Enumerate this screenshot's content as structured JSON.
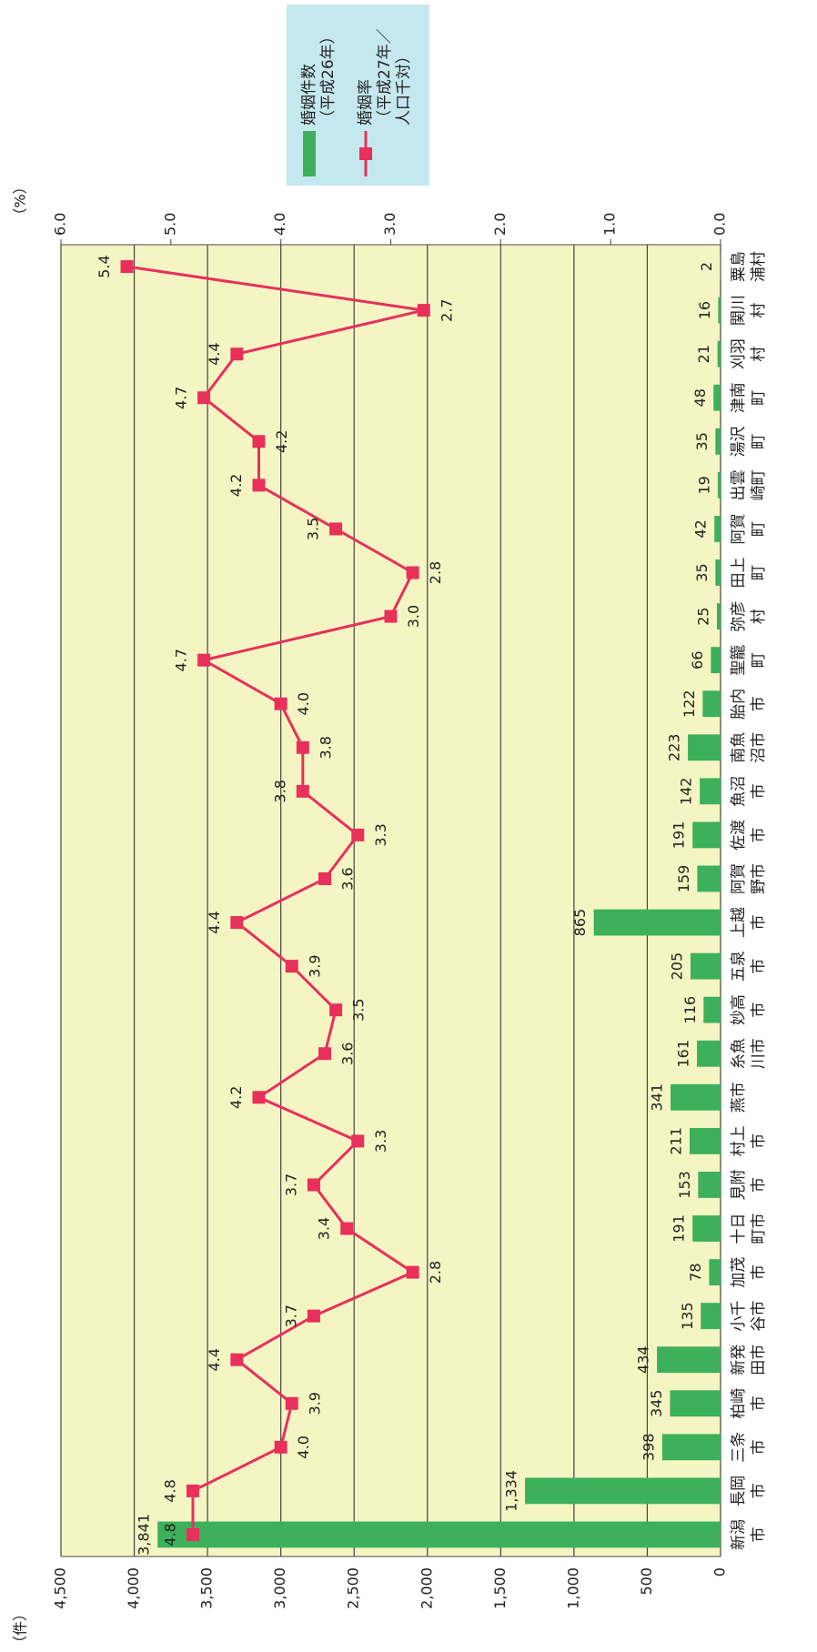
{
  "chart_data": {
    "type": "bar+line",
    "categories": [
      "新潟市",
      "長岡市",
      "三条市",
      "柏崎市",
      "新発田市",
      "小千谷市",
      "加茂市",
      "十日町市",
      "見附市",
      "村上市",
      "燕市",
      "糸魚川市",
      "妙高市",
      "五泉市",
      "上越市",
      "阿賀野市",
      "佐渡市",
      "魚沼市",
      "南魚沼市",
      "胎内市",
      "聖籠町",
      "弥彦村",
      "田上町",
      "阿賀町",
      "出雲崎町",
      "湯沢町",
      "津南町",
      "刈羽村",
      "関川村",
      "粟島浦村"
    ],
    "series": [
      {
        "name": "婚姻件数（平成26年）",
        "type": "bar",
        "color": "#3cb05a",
        "values": [
          3841,
          1334,
          398,
          345,
          434,
          135,
          78,
          191,
          153,
          211,
          341,
          161,
          116,
          205,
          865,
          159,
          191,
          142,
          223,
          122,
          66,
          25,
          35,
          42,
          19,
          35,
          48,
          21,
          16,
          2
        ],
        "value_labels": [
          "3,841",
          "1,334",
          "398",
          "345",
          "434",
          "135",
          "78",
          "191",
          "153",
          "211",
          "341",
          "161",
          "116",
          "205",
          "865",
          "159",
          "191",
          "142",
          "223",
          "122",
          "66",
          "25",
          "35",
          "42",
          "19",
          "35",
          "48",
          "21",
          "16",
          "2"
        ]
      },
      {
        "name": "婚姻率（平成27年／人口千対）",
        "type": "line",
        "axis": "y2",
        "color": "#e8305a",
        "values": [
          4.8,
          4.8,
          4.0,
          3.9,
          4.4,
          3.7,
          2.8,
          3.4,
          3.7,
          3.3,
          4.2,
          3.6,
          3.5,
          3.9,
          4.4,
          3.6,
          3.3,
          3.8,
          3.8,
          4.0,
          4.7,
          3.0,
          2.8,
          3.5,
          4.2,
          4.2,
          4.7,
          4.4,
          2.7,
          5.4
        ],
        "value_labels": [
          "4.8",
          "4.8",
          "4.0",
          "3.9",
          "4.4",
          "3.7",
          "2.8",
          "3.4",
          "3.7",
          "3.3",
          "4.2",
          "3.6",
          "3.5",
          "3.9",
          "4.4",
          "3.6",
          "3.3",
          "3.8",
          "3.8",
          "4.0",
          "4.7",
          "3.0",
          "2.8",
          "3.5",
          "4.2",
          "4.2",
          "4.7",
          "4.4",
          "2.7",
          "5.4"
        ]
      }
    ],
    "ylabel": "（件）",
    "y2label": "（%）",
    "ylim": [
      0,
      4500
    ],
    "yticks": [
      0,
      500,
      {
        "value": 1000,
        "label": "1,000"
      },
      {
        "value": 1500,
        "label": "1,500"
      },
      {
        "value": 2000,
        "label": "2,000"
      },
      {
        "value": 2500,
        "label": "2,500"
      },
      {
        "value": 3000,
        "label": "3,000"
      },
      {
        "value": 3500,
        "label": "3,500"
      },
      {
        "value": 4000,
        "label": "4,000"
      },
      {
        "value": 4500,
        "label": "4,500"
      }
    ],
    "y2lim": [
      0,
      6
    ],
    "y2ticks": [
      {
        "value": 0,
        "label": "0.0"
      },
      {
        "value": 1,
        "label": "1.0"
      },
      {
        "value": 2,
        "label": "2.0"
      },
      {
        "value": 3,
        "label": "3.0"
      },
      {
        "value": 4,
        "label": "4.0"
      },
      {
        "value": 5,
        "label": "5.0"
      },
      {
        "value": 6,
        "label": "6.0"
      }
    ],
    "grid": true,
    "legend": "top right",
    "background": "#f5f5c3"
  }
}
